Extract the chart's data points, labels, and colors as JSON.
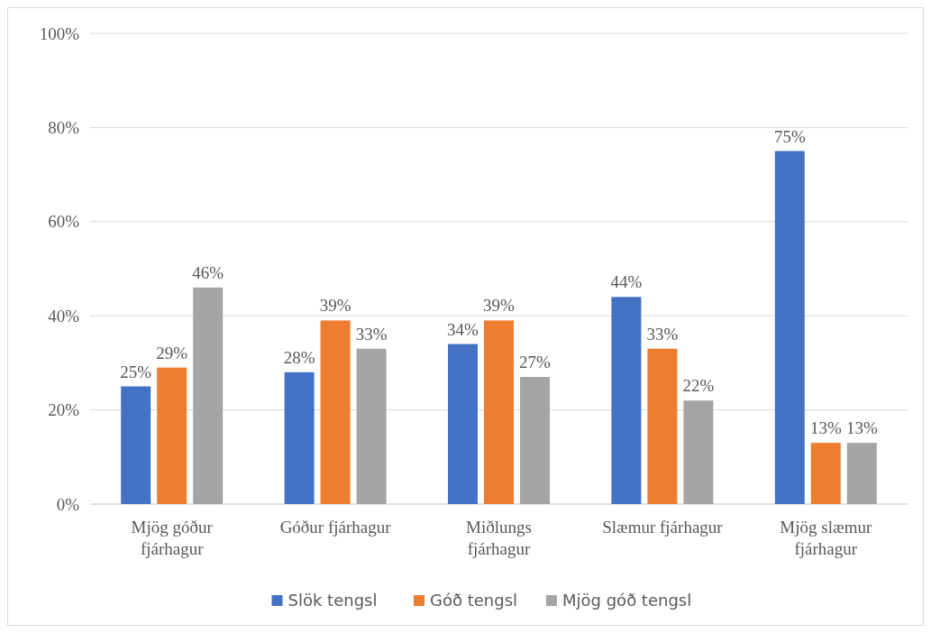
{
  "chart_data": {
    "type": "bar",
    "categories": [
      "Mjög góður fjárhagur",
      "Góður fjárhagur",
      "Miðlungs fjárhagur",
      "Slæmur fjárhagur",
      "Mjög slæmur fjárhagur"
    ],
    "series": [
      {
        "name": "Slök tengsl",
        "color": "#4472c4",
        "values": [
          25,
          28,
          34,
          44,
          75
        ],
        "value_labels": [
          "25%",
          "28%",
          "34%",
          "44%",
          "75%"
        ]
      },
      {
        "name": "Góð tengsl",
        "color": "#ed7d31",
        "values": [
          29,
          39,
          39,
          33,
          13
        ],
        "value_labels": [
          "29%",
          "39%",
          "39%",
          "33%",
          "13%"
        ]
      },
      {
        "name": "Mjög góð tengsl",
        "color": "#a5a5a5",
        "values": [
          46,
          33,
          27,
          22,
          13
        ],
        "value_labels": [
          "46%",
          "33%",
          "27%",
          "22%",
          "13%"
        ]
      }
    ],
    "ylim": [
      0,
      100
    ],
    "yticks": [
      {
        "value": 0,
        "label": "0%"
      },
      {
        "value": 20,
        "label": "20%"
      },
      {
        "value": 40,
        "label": "40%"
      },
      {
        "value": 60,
        "label": "60%"
      },
      {
        "value": 80,
        "label": "80%"
      },
      {
        "value": 100,
        "label": "100%"
      }
    ],
    "grid": "y",
    "legend": "bottom"
  }
}
